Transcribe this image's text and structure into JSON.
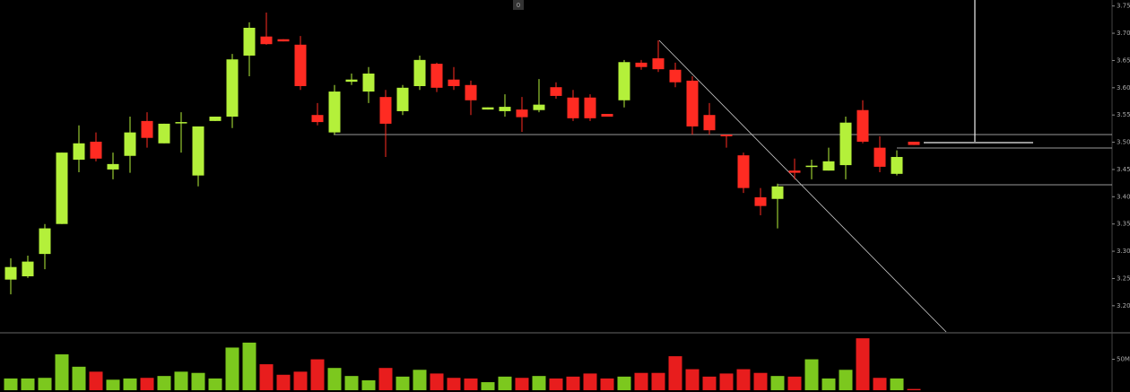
{
  "chart_data": {
    "type": "candlestick",
    "badge": "0",
    "categories": [
      null,
      null,
      null,
      null,
      null,
      null,
      null,
      null,
      null,
      null,
      null,
      null,
      null,
      null,
      null,
      null,
      null,
      null,
      null,
      null,
      null,
      null,
      null,
      null,
      null,
      null,
      null,
      null,
      null,
      null,
      null,
      null,
      null,
      null,
      null,
      null,
      null,
      null,
      null,
      null,
      null,
      null,
      null,
      null,
      null,
      null,
      null,
      null,
      null,
      null,
      null,
      null,
      null,
      null
    ],
    "open": [
      3.248,
      3.254,
      3.295,
      3.35,
      3.468,
      3.501,
      3.45,
      3.475,
      3.539,
      3.498,
      3.536,
      3.439,
      3.539,
      3.547,
      3.659,
      3.694,
      3.689,
      3.679,
      3.55,
      3.518,
      3.611,
      3.593,
      3.583,
      3.557,
      3.603,
      3.644,
      3.615,
      3.605,
      3.56,
      3.557,
      3.56,
      3.559,
      3.601,
      3.582,
      3.582,
      3.552,
      3.577,
      3.646,
      3.654,
      3.633,
      3.613,
      3.55,
      3.514,
      3.476,
      3.399,
      3.396,
      3.448,
      3.455,
      3.448,
      3.458,
      3.559,
      3.49,
      3.442,
      3.501
    ],
    "high": [
      3.287,
      3.292,
      3.35,
      3.481,
      3.531,
      3.518,
      3.481,
      3.547,
      3.555,
      3.534,
      3.555,
      3.529,
      3.547,
      3.662,
      3.72,
      3.738,
      3.689,
      3.695,
      3.572,
      3.605,
      3.626,
      3.638,
      3.596,
      3.605,
      3.659,
      3.646,
      3.638,
      3.613,
      3.564,
      3.588,
      3.583,
      3.616,
      3.61,
      3.596,
      3.588,
      3.552,
      3.651,
      3.651,
      3.687,
      3.646,
      3.621,
      3.572,
      3.514,
      3.481,
      3.416,
      3.424,
      3.47,
      3.468,
      3.49,
      3.547,
      3.577,
      3.511,
      3.485,
      3.501
    ],
    "low": [
      3.221,
      3.251,
      3.267,
      3.35,
      3.445,
      3.465,
      3.432,
      3.444,
      3.49,
      3.498,
      3.481,
      3.419,
      3.539,
      3.526,
      3.621,
      3.679,
      3.685,
      3.596,
      3.531,
      3.514,
      3.605,
      3.572,
      3.473,
      3.55,
      3.596,
      3.592,
      3.596,
      3.55,
      3.56,
      3.547,
      3.519,
      3.555,
      3.58,
      3.539,
      3.539,
      3.547,
      3.564,
      3.633,
      3.629,
      3.601,
      3.514,
      3.514,
      3.49,
      3.407,
      3.366,
      3.342,
      3.432,
      3.432,
      3.448,
      3.432,
      3.498,
      3.445,
      3.439,
      3.495
    ],
    "close": [
      3.271,
      3.281,
      3.342,
      3.481,
      3.498,
      3.47,
      3.46,
      3.518,
      3.508,
      3.534,
      3.537,
      3.529,
      3.547,
      3.652,
      3.71,
      3.68,
      3.685,
      3.603,
      3.537,
      3.593,
      3.615,
      3.626,
      3.534,
      3.6,
      3.651,
      3.6,
      3.603,
      3.577,
      3.564,
      3.565,
      3.546,
      3.569,
      3.585,
      3.544,
      3.544,
      3.547,
      3.647,
      3.638,
      3.634,
      3.61,
      3.529,
      3.522,
      3.511,
      3.416,
      3.383,
      3.419,
      3.444,
      3.457,
      3.465,
      3.536,
      3.501,
      3.455,
      3.473,
      3.495
    ],
    "volume": [
      19,
      19,
      20,
      58,
      38,
      30,
      17,
      19,
      20,
      23,
      30,
      28,
      19,
      69,
      77,
      42,
      25,
      30,
      50,
      36,
      23,
      16,
      36,
      22,
      33,
      27,
      20,
      19,
      13,
      22,
      20,
      23,
      19,
      22,
      27,
      19,
      22,
      28,
      28,
      55,
      34,
      22,
      27,
      34,
      28,
      23,
      22,
      50,
      19,
      33,
      84,
      20,
      19,
      2
    ],
    "up_color": "#b4f03a",
    "down_color": "#ff2b22",
    "volume_up_color": "#7cc81e",
    "volume_down_color": "#e81d1d",
    "ylim": [
      3.152,
      3.761
    ],
    "yticks": [
      {
        "value": 3.75,
        "label": "3.75"
      },
      {
        "value": 3.7,
        "label": "3.70"
      },
      {
        "value": 3.65,
        "label": "3.65"
      },
      {
        "value": 3.6,
        "label": "3.60"
      },
      {
        "value": 3.55,
        "label": "3.55"
      },
      {
        "value": 3.5,
        "label": "3.50"
      },
      {
        "value": 3.45,
        "label": "3.45"
      },
      {
        "value": 3.4,
        "label": "3.40"
      },
      {
        "value": 3.35,
        "label": "3.35"
      },
      {
        "value": 3.3,
        "label": "3.30"
      },
      {
        "value": 3.25,
        "label": "3.25"
      },
      {
        "value": 3.2,
        "label": "3.20"
      }
    ],
    "volume_ylim": [
      0,
      90
    ],
    "volume_yticks": [
      {
        "value": 50,
        "label": "50M"
      }
    ]
  }
}
